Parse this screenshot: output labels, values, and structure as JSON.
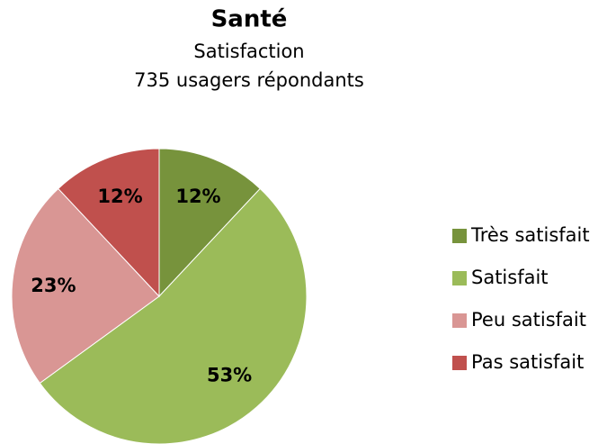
{
  "chart_data": {
    "type": "pie",
    "title": "Santé",
    "subtitle": [
      "Satisfaction",
      "735 usagers répondants"
    ],
    "categories": [
      "Très satisfait",
      "Satisfait",
      "Peu satisfait",
      "Pas satisfait"
    ],
    "values": [
      12,
      53,
      23,
      12
    ],
    "value_labels": [
      "12%",
      "53%",
      "23%",
      "12%"
    ],
    "colors": [
      "#77933c",
      "#9bbb59",
      "#d99694",
      "#c0504d"
    ],
    "legend": "right"
  }
}
